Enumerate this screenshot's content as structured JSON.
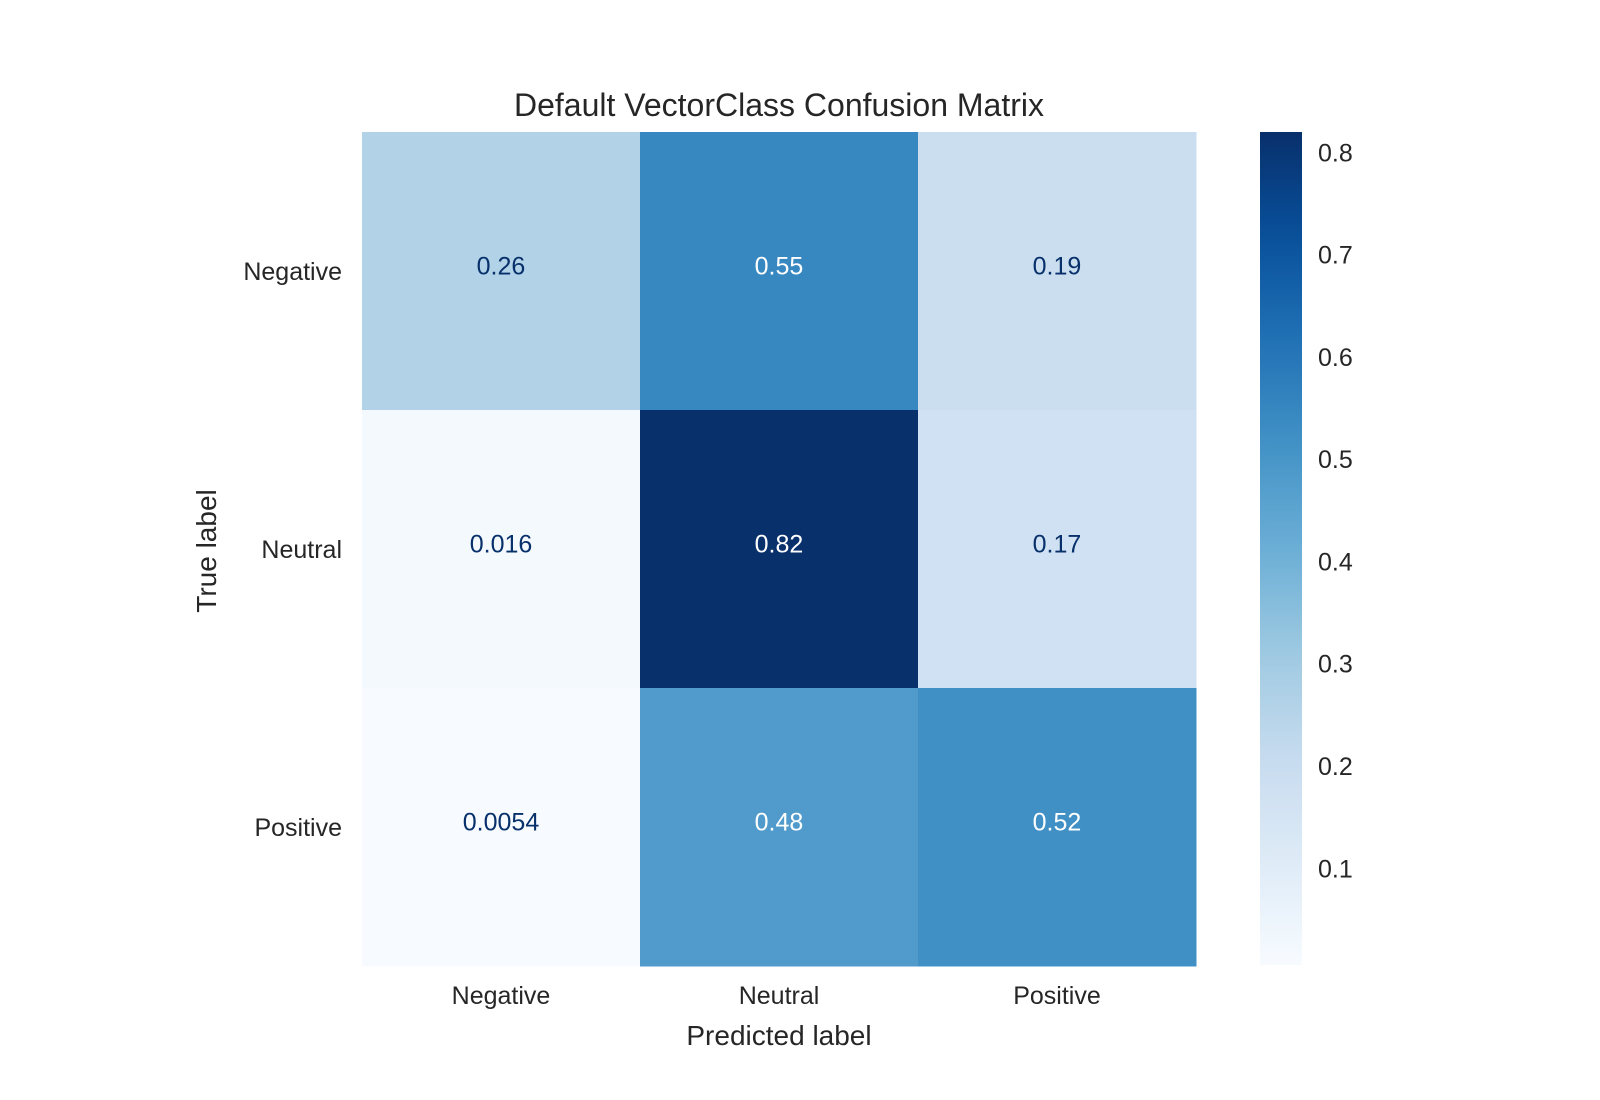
{
  "chart_data": {
    "type": "heatmap",
    "title": "Default VectorClass Confusion Matrix",
    "xlabel": "Predicted label",
    "ylabel": "True label",
    "x_categories": [
      "Negative",
      "Neutral",
      "Positive"
    ],
    "y_categories": [
      "Negative",
      "Neutral",
      "Positive"
    ],
    "matrix": [
      [
        0.26,
        0.55,
        0.19
      ],
      [
        0.016,
        0.82,
        0.17
      ],
      [
        0.0054,
        0.48,
        0.52
      ]
    ],
    "cell_labels": [
      [
        "0.26",
        "0.55",
        "0.19"
      ],
      [
        "0.016",
        "0.82",
        "0.17"
      ],
      [
        "0.0054",
        "0.48",
        "0.52"
      ]
    ],
    "colorscale": "Blues",
    "colorbar": {
      "range": [
        0.0054,
        0.82
      ],
      "ticks": [
        0.1,
        0.2,
        0.3,
        0.4,
        0.5,
        0.6,
        0.7,
        0.8
      ],
      "tick_labels": [
        "0.1",
        "0.2",
        "0.3",
        "0.4",
        "0.5",
        "0.6",
        "0.7",
        "0.8"
      ]
    },
    "grid": false
  }
}
